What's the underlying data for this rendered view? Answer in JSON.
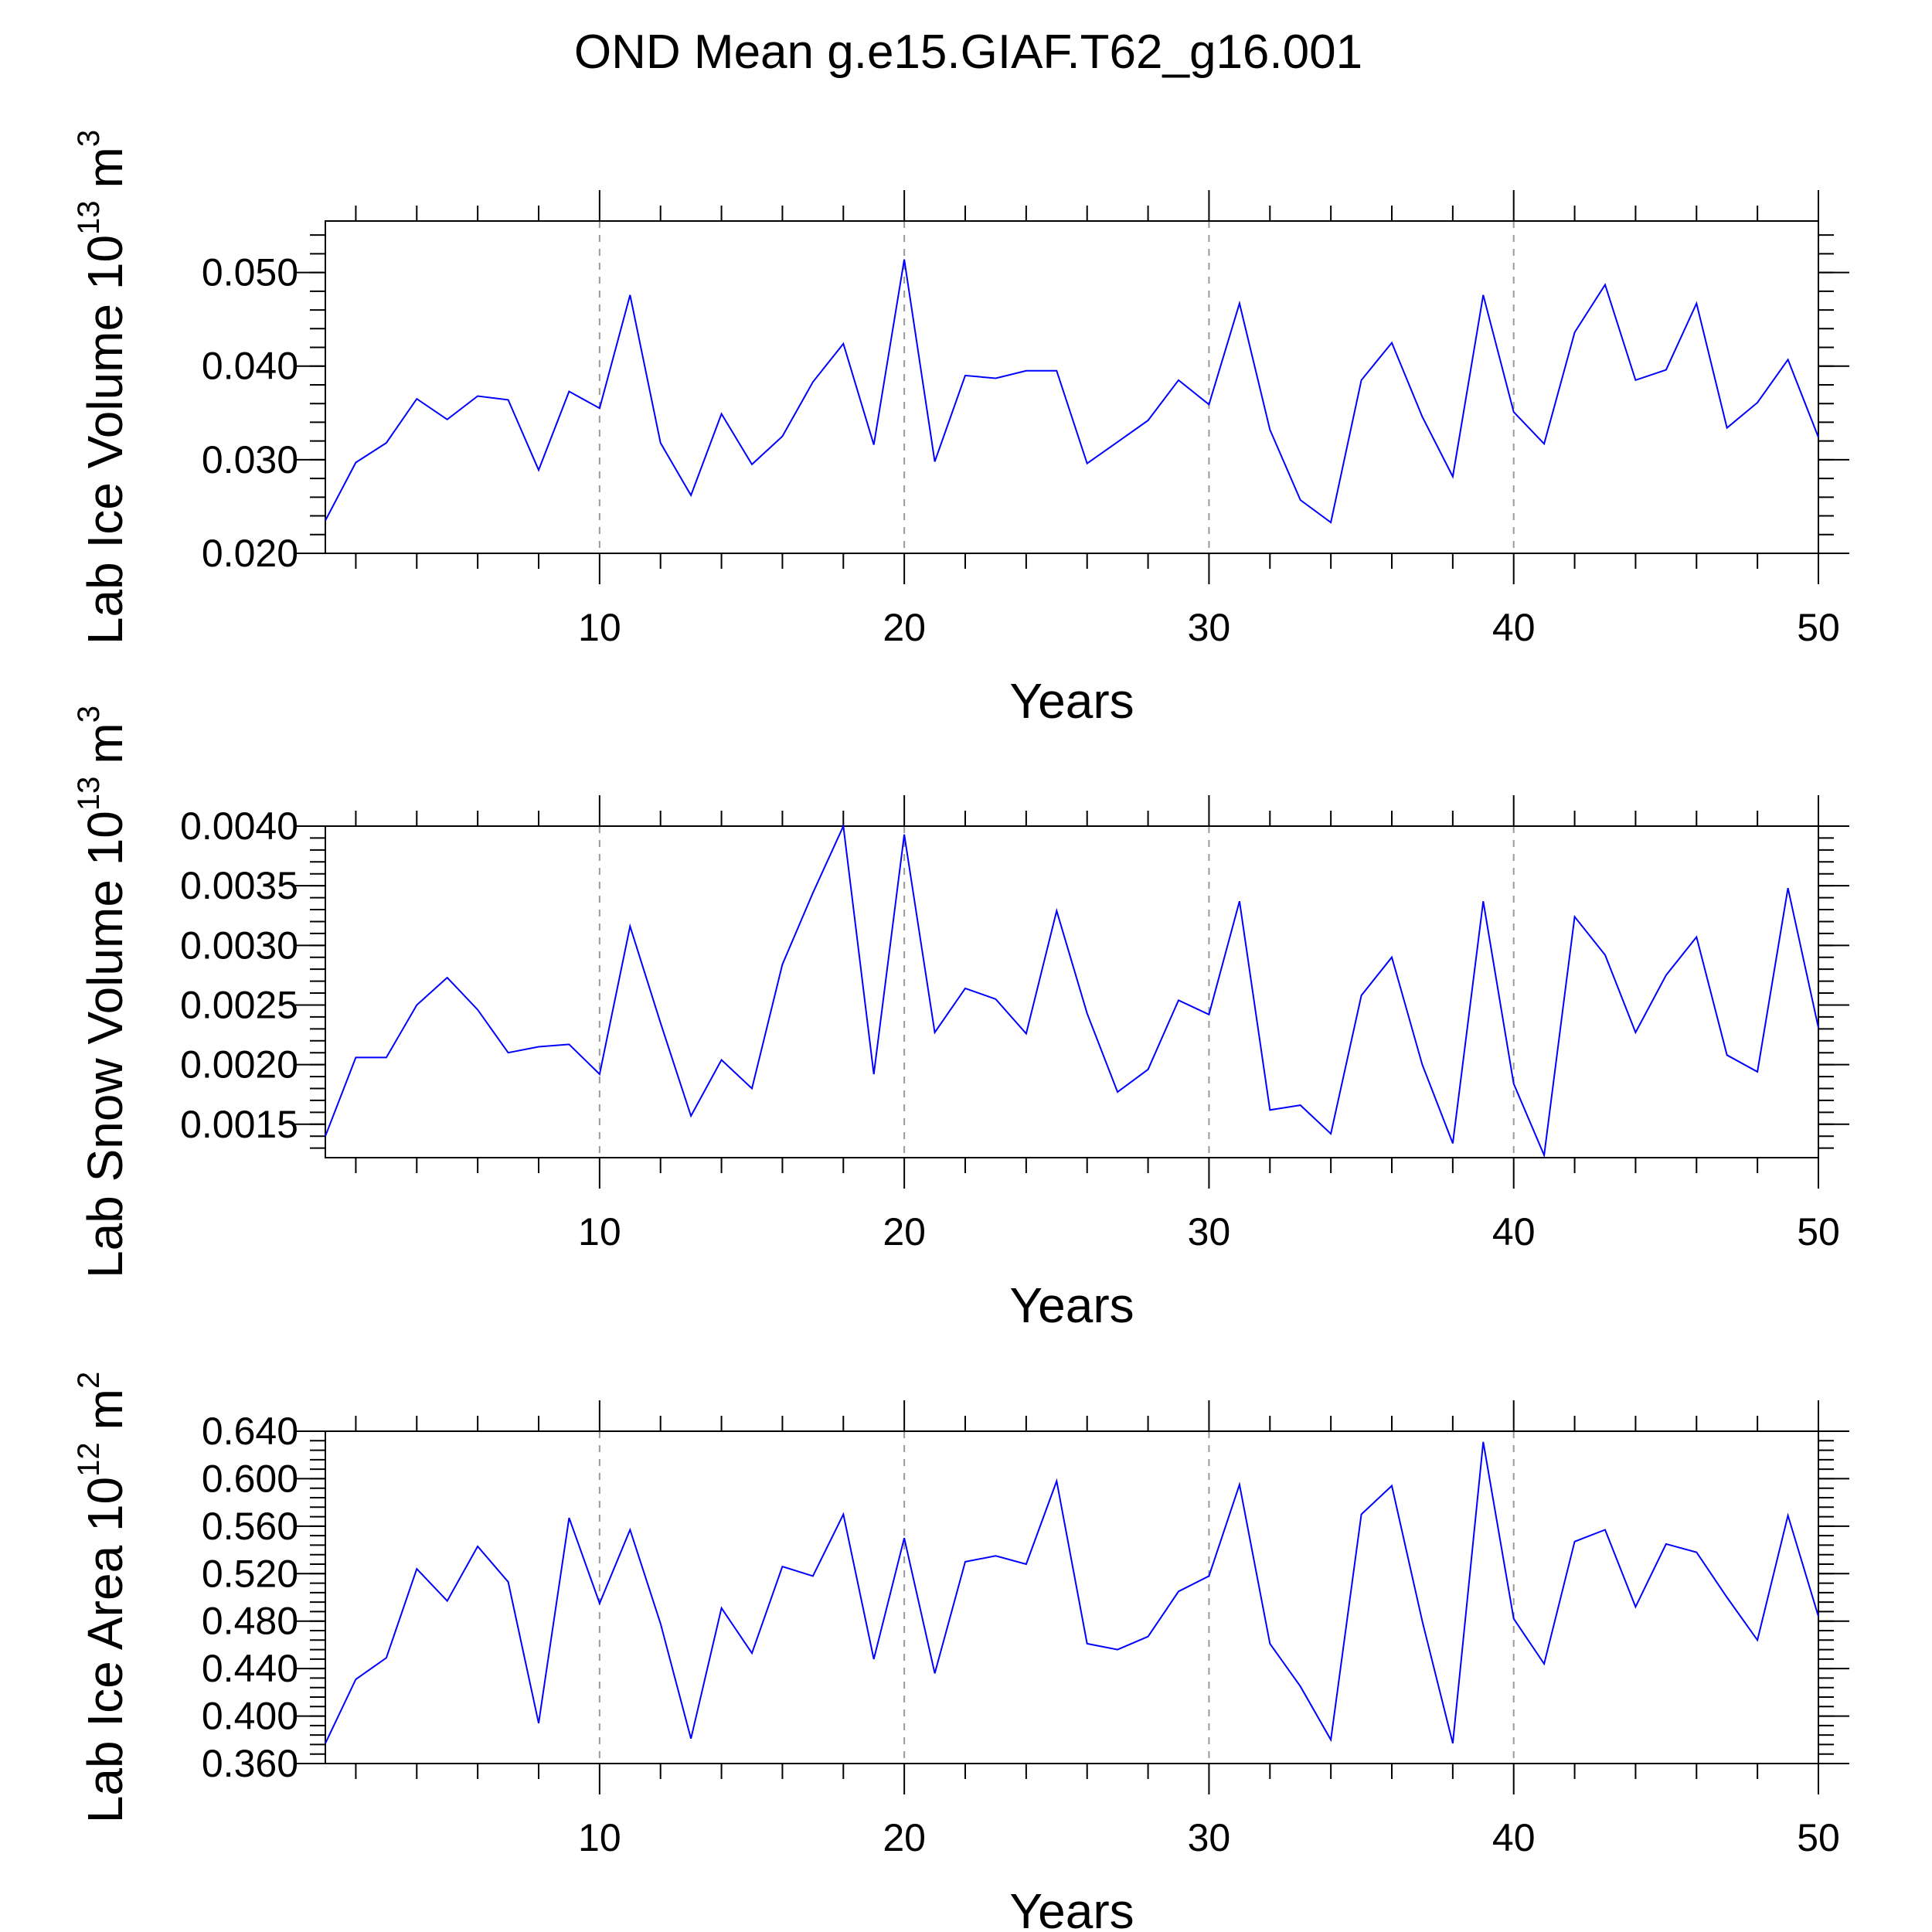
{
  "title": "OND Mean g.e15.GIAF.T62_g16.001",
  "line_color": "#0000ff",
  "chart_data": [
    {
      "type": "line",
      "ylabel": "Lab Ice Volume 10",
      "ylabel_exp": "13",
      "ylabel_unit": "m",
      "ylabel_unit_exp": "3",
      "xlabel": "Years",
      "xlim": [
        1,
        50
      ],
      "ylim": [
        0.02,
        0.0555
      ],
      "xticks": [
        "10",
        "20",
        "30",
        "40",
        "50"
      ],
      "yticks": [
        "0.020",
        "0.030",
        "0.040",
        "0.050"
      ],
      "grid": "vertical dashed lines at x-axis major ticks",
      "x": [
        1,
        2,
        3,
        4,
        5,
        6,
        7,
        8,
        9,
        10,
        11,
        12,
        13,
        14,
        15,
        16,
        17,
        18,
        19,
        20,
        21,
        22,
        23,
        24,
        25,
        26,
        27,
        28,
        29,
        30,
        31,
        32,
        33,
        34,
        35,
        36,
        37,
        38,
        39,
        40,
        41,
        42,
        43,
        44,
        45,
        46,
        47,
        48,
        49,
        50
      ],
      "values": [
        0.0235,
        0.0297,
        0.0318,
        0.0365,
        0.0343,
        0.0368,
        0.0364,
        0.0289,
        0.0373,
        0.0355,
        0.0476,
        0.0318,
        0.0262,
        0.0349,
        0.0295,
        0.0325,
        0.0383,
        0.0424,
        0.0316,
        0.0514,
        0.0298,
        0.039,
        0.0387,
        0.0395,
        0.0395,
        0.0296,
        0.0319,
        0.0342,
        0.0385,
        0.0359,
        0.0467,
        0.0332,
        0.0257,
        0.0233,
        0.0385,
        0.0425,
        0.0346,
        0.0282,
        0.0476,
        0.0351,
        0.0317,
        0.0436,
        0.0487,
        0.0385,
        0.0396,
        0.0467,
        0.0334,
        0.0361,
        0.0407,
        0.0324
      ]
    },
    {
      "type": "line",
      "ylabel": "Lab Snow Volume 10",
      "ylabel_exp": "13",
      "ylabel_unit": "m",
      "ylabel_unit_exp": "3",
      "xlabel": "Years",
      "xlim": [
        1,
        50
      ],
      "ylim": [
        0.00122,
        0.004
      ],
      "xticks": [
        "10",
        "20",
        "30",
        "40",
        "50"
      ],
      "yticks": [
        "0.0015",
        "0.0020",
        "0.0025",
        "0.0030",
        "0.0035",
        "0.0040"
      ],
      "grid": "vertical dashed lines at x-axis major ticks",
      "x": [
        1,
        2,
        3,
        4,
        5,
        6,
        7,
        8,
        9,
        10,
        11,
        12,
        13,
        14,
        15,
        16,
        17,
        18,
        19,
        20,
        21,
        22,
        23,
        24,
        25,
        26,
        27,
        28,
        29,
        30,
        31,
        32,
        33,
        34,
        35,
        36,
        37,
        38,
        39,
        40,
        41,
        42,
        43,
        44,
        45,
        46,
        47,
        48,
        49,
        50
      ],
      "values": [
        0.0014,
        0.00206,
        0.00206,
        0.0025,
        0.00273,
        0.00246,
        0.0021,
        0.00215,
        0.00217,
        0.00192,
        0.00316,
        0.00235,
        0.00157,
        0.00204,
        0.0018,
        0.00284,
        0.00344,
        0.004,
        0.00192,
        0.00393,
        0.00227,
        0.00264,
        0.00255,
        0.00226,
        0.00329,
        0.00243,
        0.00177,
        0.00196,
        0.00254,
        0.00242,
        0.00337,
        0.00162,
        0.00166,
        0.00142,
        0.00258,
        0.0029,
        0.002,
        0.00134,
        0.00337,
        0.00184,
        0.00124,
        0.00324,
        0.00292,
        0.00227,
        0.00275,
        0.00307,
        0.00208,
        0.00194,
        0.00348,
        0.00231
      ]
    },
    {
      "type": "line",
      "ylabel": "Lab Ice Area 10",
      "ylabel_exp": "12",
      "ylabel_unit": "m",
      "ylabel_unit_exp": "2",
      "xlabel": "Years",
      "xlim": [
        1,
        50
      ],
      "ylim": [
        0.36,
        0.64
      ],
      "xticks": [
        "10",
        "20",
        "30",
        "40",
        "50"
      ],
      "yticks": [
        "0.360",
        "0.400",
        "0.440",
        "0.480",
        "0.520",
        "0.560",
        "0.600",
        "0.640"
      ],
      "grid": "vertical dashed lines at x-axis major ticks",
      "x": [
        1,
        2,
        3,
        4,
        5,
        6,
        7,
        8,
        9,
        10,
        11,
        12,
        13,
        14,
        15,
        16,
        17,
        18,
        19,
        20,
        21,
        22,
        23,
        24,
        25,
        26,
        27,
        28,
        29,
        30,
        31,
        32,
        33,
        34,
        35,
        36,
        37,
        38,
        39,
        40,
        41,
        42,
        43,
        44,
        45,
        46,
        47,
        48,
        49,
        50
      ],
      "values": [
        0.377,
        0.431,
        0.449,
        0.524,
        0.497,
        0.543,
        0.513,
        0.394,
        0.567,
        0.495,
        0.557,
        0.478,
        0.381,
        0.491,
        0.453,
        0.526,
        0.518,
        0.57,
        0.448,
        0.55,
        0.436,
        0.53,
        0.535,
        0.528,
        0.598,
        0.461,
        0.456,
        0.467,
        0.505,
        0.518,
        0.595,
        0.461,
        0.425,
        0.38,
        0.57,
        0.594,
        0.48,
        0.377,
        0.631,
        0.482,
        0.444,
        0.547,
        0.557,
        0.492,
        0.545,
        0.538,
        0.5,
        0.464,
        0.569,
        0.484
      ]
    }
  ]
}
